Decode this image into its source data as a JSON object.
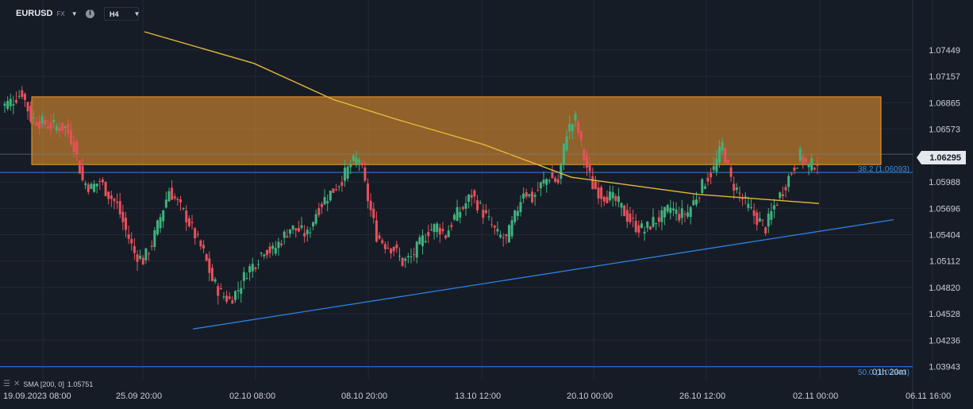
{
  "toolbar": {
    "symbol": "EURUSD",
    "exchange": "FX",
    "timeframe": "H4",
    "symbol_dropdown_icon": "caret-down-icon",
    "info_icon": "info-icon",
    "timeframe_dropdown_icon": "caret-down-icon"
  },
  "indicator_legend": {
    "label": "SMA [200, 0]",
    "value": "1.05751",
    "icons": [
      "eye-off-icon",
      "close-icon"
    ]
  },
  "current_price_label": "1.06295",
  "fib_levels": [
    {
      "label": "38.2 (1.06093)",
      "price": 1.06093
    },
    {
      "label": "50.0 (1.03943)",
      "price": 1.03943
    }
  ],
  "countdown": "01h 20m",
  "colors": {
    "background": "#161c26",
    "grid": "#212936",
    "up": "#3fb37c",
    "down": "#e8505b",
    "sma": "#e6b73a",
    "zone": "#f59a2e",
    "trendline": "#2d82e6",
    "axis_text": "#c9ced6"
  },
  "chart_data": {
    "type": "candlestick",
    "symbol": "EURUSD",
    "timeframe": "H4",
    "y_axis": {
      "ticks": [
        "1.07449",
        "1.07157",
        "1.06865",
        "1.06573",
        "1.06295",
        "1.05988",
        "1.05696",
        "1.05404",
        "1.05112",
        "1.04820",
        "1.04528",
        "1.04236",
        "1.03943"
      ],
      "range": [
        1.038,
        1.0765
      ]
    },
    "x_axis": {
      "labels": [
        "19.09.2023  08:00",
        "25.09  20:00",
        "02.10  08:00",
        "08.10  20:00",
        "13.10  12:00",
        "20.10  00:00",
        "26.10  12:00",
        "02.11  00:00",
        "06.11  16:00"
      ]
    },
    "current_price": 1.06295,
    "supply_zone": {
      "top": 1.0693,
      "bottom": 1.0618
    },
    "support_trendline": {
      "from_label": "28.09",
      "from_price": 1.0436,
      "to_label": "06.11",
      "to_price": 1.0557
    },
    "sma_200": [
      {
        "x_label": "19.09",
        "y": 1.0765
      },
      {
        "x_label": "25.09",
        "y": 1.073
      },
      {
        "x_label": "02.10",
        "y": 1.069
      },
      {
        "x_label": "08.10",
        "y": 1.0668
      },
      {
        "x_label": "13.10",
        "y": 1.064
      },
      {
        "x_label": "20.10",
        "y": 1.0604
      },
      {
        "x_label": "26.10",
        "y": 1.0585
      },
      {
        "x_label": "02.11",
        "y": 1.0575
      }
    ],
    "candles_close_path": [
      1.0684,
      1.069,
      1.0698,
      1.067,
      1.0665,
      1.0662,
      1.066,
      1.0659,
      1.064,
      1.06,
      1.0592,
      1.06,
      1.0585,
      1.0573,
      1.0545,
      1.052,
      1.0512,
      1.053,
      1.056,
      1.059,
      1.0575,
      1.056,
      1.054,
      1.052,
      1.049,
      1.0475,
      1.0468,
      1.048,
      1.05,
      1.051,
      1.0525,
      1.0522,
      1.0535,
      1.0548,
      1.0545,
      1.054,
      1.0565,
      1.058,
      1.059,
      1.0602,
      1.0618,
      1.0625,
      1.058,
      1.054,
      1.053,
      1.0525,
      1.051,
      1.0515,
      1.053,
      1.0545,
      1.055,
      1.054,
      1.056,
      1.057,
      1.0585,
      1.057,
      1.0555,
      1.054,
      1.0535,
      1.056,
      1.059,
      1.058,
      1.0595,
      1.0605,
      1.0598,
      1.0655,
      1.0668,
      1.0625,
      1.0595,
      1.0585,
      1.0582,
      1.0575,
      1.056,
      1.055,
      1.0545,
      1.0555,
      1.056,
      1.057,
      1.0562,
      1.0565,
      1.0583,
      1.06,
      1.0613,
      1.064,
      1.06,
      1.0585,
      1.057,
      1.0558,
      1.0548,
      1.0572,
      1.059,
      1.0611,
      1.0628,
      1.0615,
      1.0622
    ]
  }
}
